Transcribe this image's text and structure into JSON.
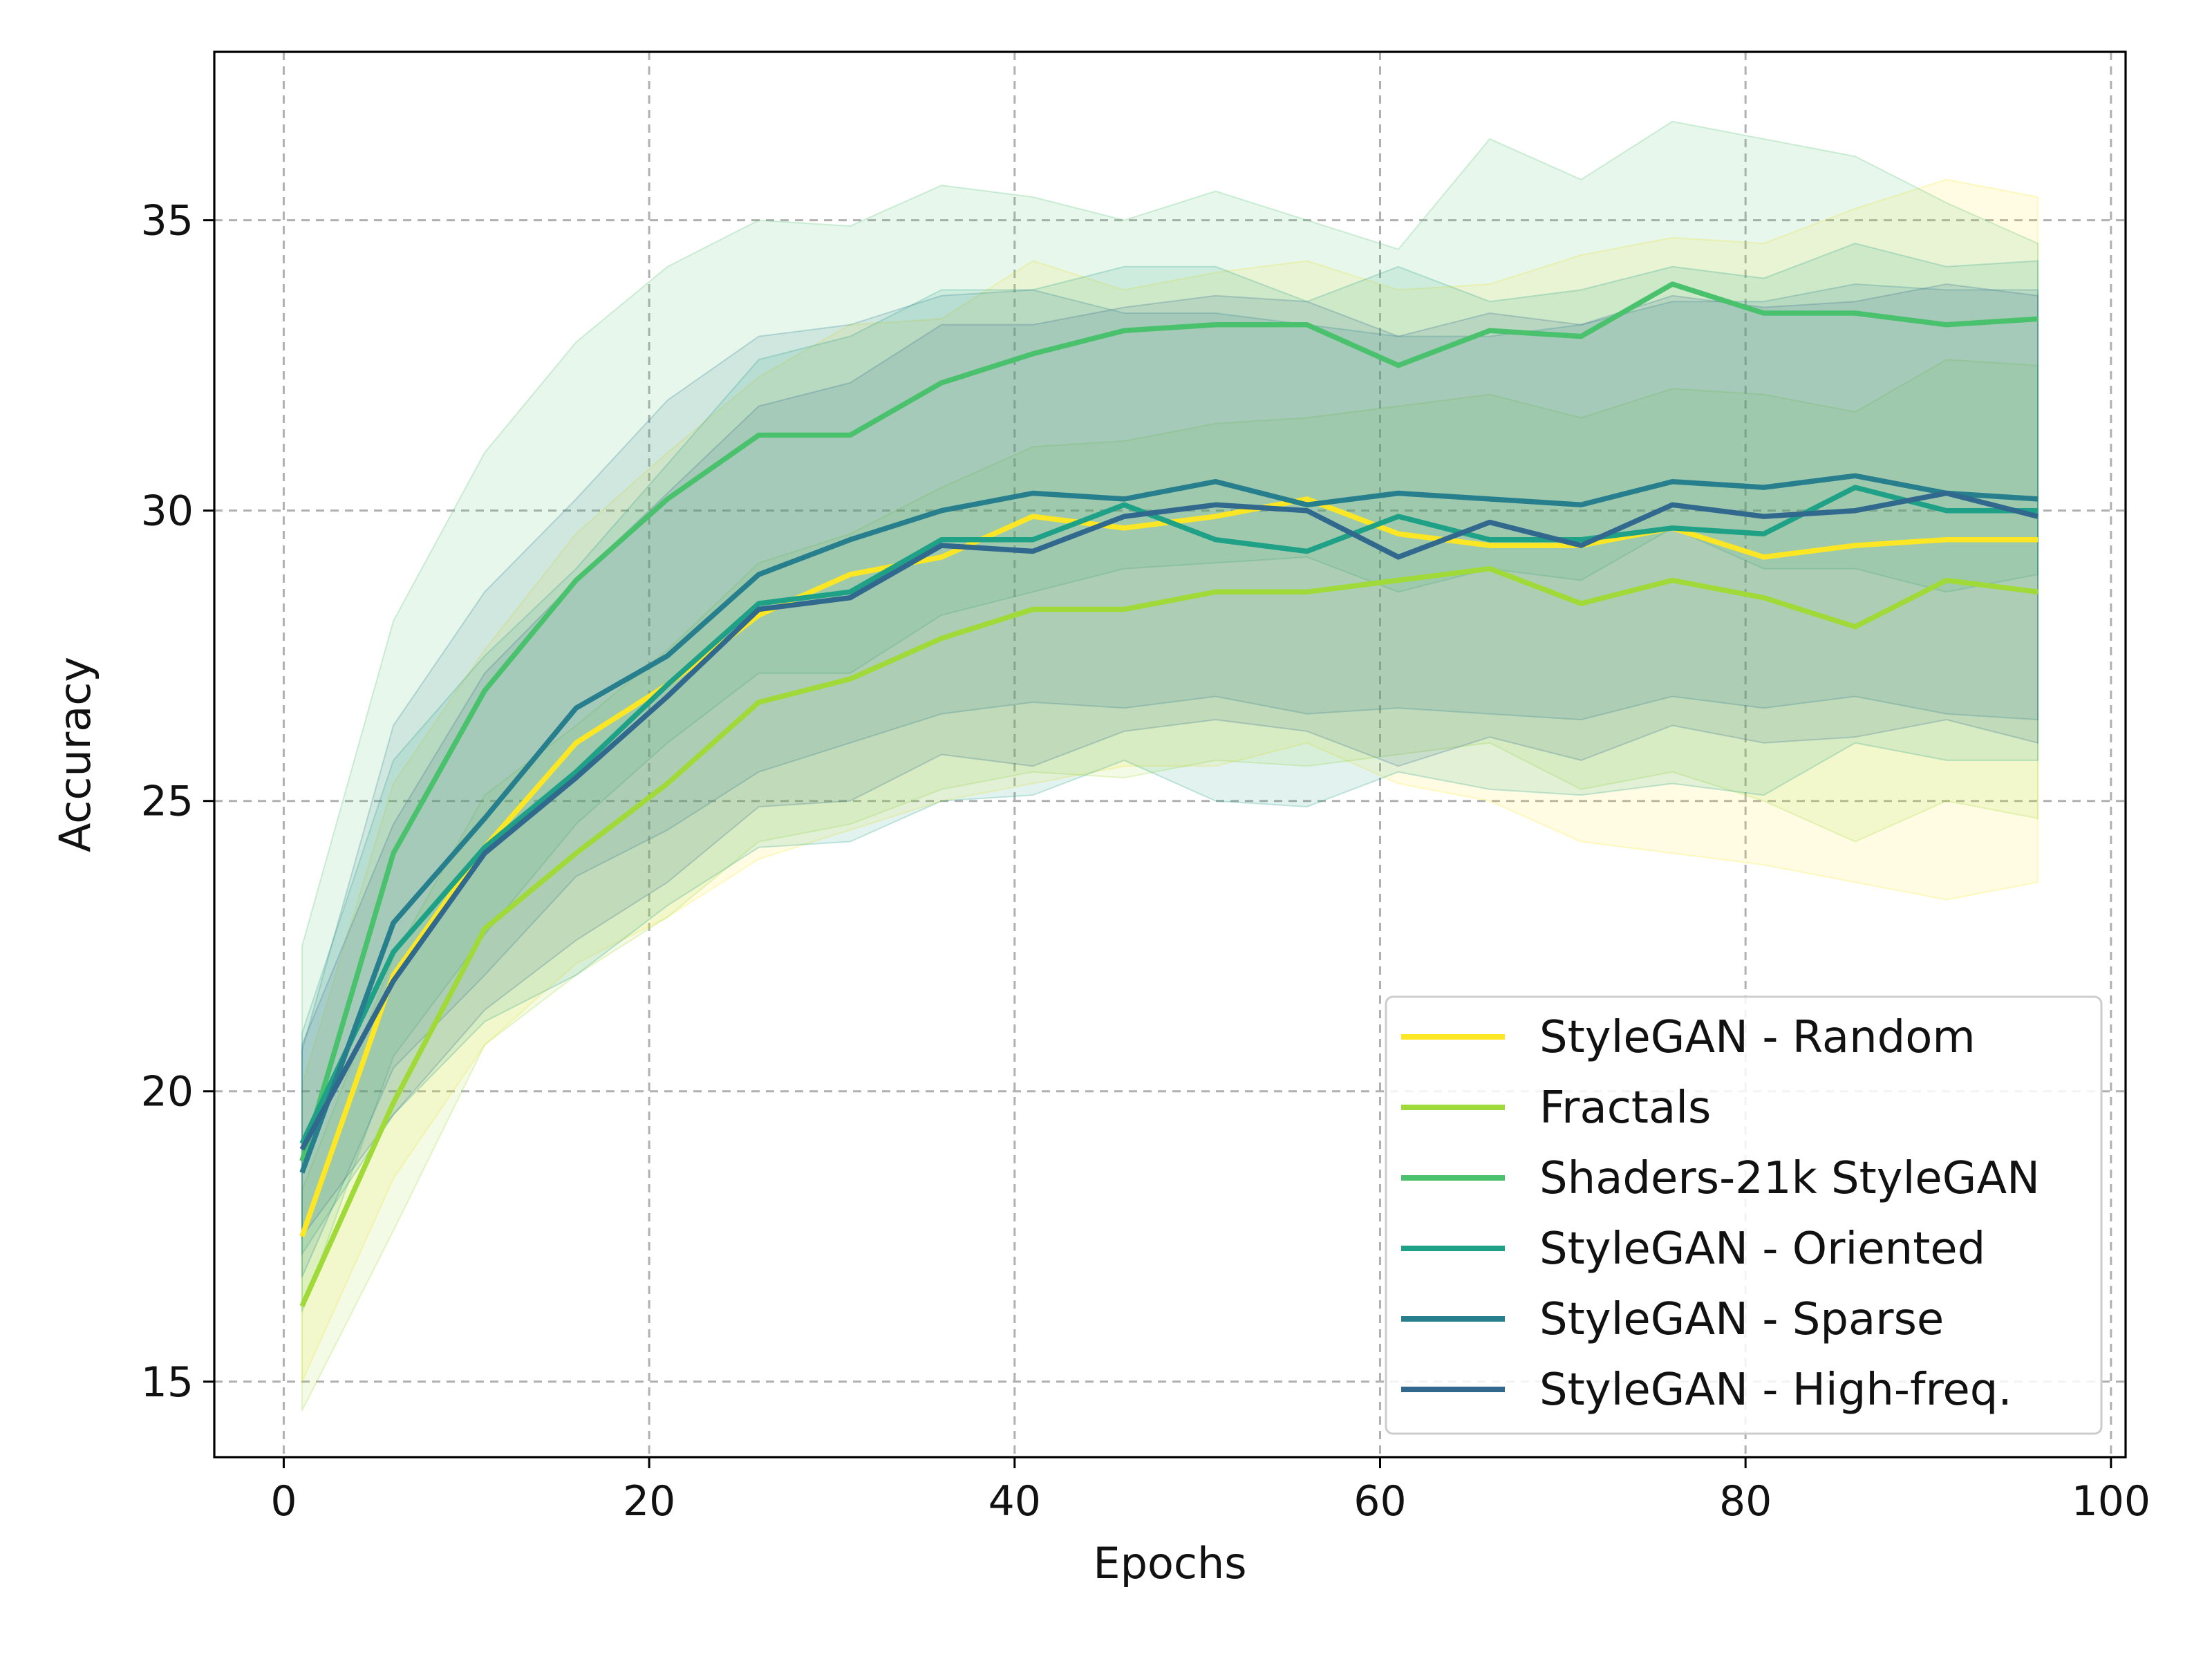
{
  "chart_data": {
    "type": "line",
    "title": "",
    "xlabel": "Epochs",
    "ylabel": "Accuracy",
    "xlim": [
      -3.8,
      100.8
    ],
    "ylim": [
      13.7,
      37.9
    ],
    "xticks": [
      0,
      20,
      40,
      60,
      80,
      100
    ],
    "yticks": [
      15,
      20,
      25,
      30,
      35
    ],
    "grid": true,
    "legend_position": "lower-right",
    "x": [
      1,
      6,
      11,
      16,
      21,
      26,
      31,
      36,
      41,
      46,
      51,
      56,
      61,
      66,
      71,
      76,
      81,
      86,
      91,
      96
    ],
    "series": [
      {
        "name": "StyleGAN - Random",
        "color": "#fde725",
        "values": [
          17.5,
          22.0,
          24.2,
          26.0,
          27.0,
          28.2,
          28.9,
          29.2,
          29.9,
          29.7,
          29.9,
          30.2,
          29.6,
          29.4,
          29.4,
          29.7,
          29.2,
          29.4,
          29.5,
          29.5
        ],
        "band": [
          [
            15.0,
            20.1
          ],
          [
            18.5,
            25.3
          ],
          [
            20.8,
            27.6
          ],
          [
            22.2,
            29.6
          ],
          [
            23.0,
            31.0
          ],
          [
            24.0,
            32.3
          ],
          [
            24.5,
            33.2
          ],
          [
            25.0,
            33.3
          ],
          [
            25.3,
            34.3
          ],
          [
            25.6,
            33.8
          ],
          [
            25.6,
            34.1
          ],
          [
            26.0,
            34.3
          ],
          [
            25.3,
            33.8
          ],
          [
            25.0,
            33.9
          ],
          [
            24.3,
            34.4
          ],
          [
            24.1,
            34.7
          ],
          [
            23.9,
            34.6
          ],
          [
            23.6,
            35.2
          ],
          [
            23.3,
            35.7
          ],
          [
            23.6,
            35.4
          ]
        ]
      },
      {
        "name": "Fractals",
        "color": "#a0da39",
        "values": [
          16.3,
          19.8,
          22.8,
          24.1,
          25.3,
          26.7,
          27.1,
          27.8,
          28.3,
          28.3,
          28.6,
          28.6,
          28.8,
          29.0,
          28.4,
          28.8,
          28.5,
          28.0,
          28.8,
          28.6
        ],
        "band": [
          [
            14.5,
            18.3
          ],
          [
            17.6,
            22.3
          ],
          [
            20.8,
            25.1
          ],
          [
            22.0,
            26.3
          ],
          [
            23.0,
            27.6
          ],
          [
            24.3,
            29.1
          ],
          [
            24.6,
            29.6
          ],
          [
            25.2,
            30.4
          ],
          [
            25.5,
            31.1
          ],
          [
            25.4,
            31.2
          ],
          [
            25.7,
            31.5
          ],
          [
            25.6,
            31.6
          ],
          [
            25.8,
            31.8
          ],
          [
            26.0,
            32.0
          ],
          [
            25.2,
            31.6
          ],
          [
            25.5,
            32.1
          ],
          [
            25.0,
            32.0
          ],
          [
            24.3,
            31.7
          ],
          [
            25.0,
            32.6
          ],
          [
            24.7,
            32.5
          ]
        ]
      },
      {
        "name": "Shaders-21k StyleGAN",
        "color": "#4ac16d",
        "values": [
          18.8,
          24.1,
          26.9,
          28.8,
          30.2,
          31.3,
          31.3,
          32.2,
          32.7,
          33.1,
          33.2,
          33.2,
          32.5,
          33.1,
          33.0,
          33.9,
          33.4,
          33.4,
          33.2,
          33.3
        ],
        "band": [
          [
            16.2,
            22.5
          ],
          [
            20.6,
            28.1
          ],
          [
            22.7,
            31.0
          ],
          [
            24.6,
            32.9
          ],
          [
            26.0,
            34.2
          ],
          [
            27.2,
            35.0
          ],
          [
            27.2,
            34.9
          ],
          [
            28.2,
            35.6
          ],
          [
            28.6,
            35.4
          ],
          [
            29.0,
            35.0
          ],
          [
            29.1,
            35.5
          ],
          [
            29.2,
            35.0
          ],
          [
            28.6,
            34.5
          ],
          [
            29.0,
            36.4
          ],
          [
            28.8,
            35.7
          ],
          [
            29.7,
            36.7
          ],
          [
            29.0,
            36.4
          ],
          [
            29.0,
            36.1
          ],
          [
            28.6,
            35.3
          ],
          [
            28.9,
            34.6
          ]
        ]
      },
      {
        "name": "StyleGAN - Oriented",
        "color": "#1fa187",
        "values": [
          19.1,
          22.4,
          24.2,
          25.5,
          27.0,
          28.4,
          28.6,
          29.5,
          29.5,
          30.1,
          29.5,
          29.3,
          29.9,
          29.5,
          29.5,
          29.7,
          29.6,
          30.4,
          30.0,
          30.0
        ],
        "band": [
          [
            17.2,
            21.0
          ],
          [
            19.6,
            25.7
          ],
          [
            21.2,
            27.5
          ],
          [
            22.0,
            29.0
          ],
          [
            23.2,
            30.8
          ],
          [
            24.2,
            32.6
          ],
          [
            24.3,
            33.0
          ],
          [
            25.0,
            33.8
          ],
          [
            25.1,
            33.8
          ],
          [
            25.7,
            34.2
          ],
          [
            25.0,
            34.2
          ],
          [
            24.9,
            33.6
          ],
          [
            25.5,
            34.2
          ],
          [
            25.2,
            33.6
          ],
          [
            25.1,
            33.8
          ],
          [
            25.3,
            34.2
          ],
          [
            25.1,
            34.0
          ],
          [
            26.0,
            34.6
          ],
          [
            25.7,
            34.2
          ],
          [
            25.7,
            34.3
          ]
        ]
      },
      {
        "name": "StyleGAN - Sparse",
        "color": "#277f8e",
        "values": [
          18.6,
          22.9,
          24.7,
          26.6,
          27.5,
          28.9,
          29.5,
          30.0,
          30.3,
          30.2,
          30.5,
          30.1,
          30.3,
          30.2,
          30.1,
          30.5,
          30.4,
          30.6,
          30.3,
          30.2
        ],
        "band": [
          [
            16.8,
            20.7
          ],
          [
            20.4,
            26.3
          ],
          [
            22.0,
            28.6
          ],
          [
            23.7,
            30.2
          ],
          [
            24.5,
            31.9
          ],
          [
            25.5,
            33.0
          ],
          [
            26.0,
            33.2
          ],
          [
            26.5,
            33.7
          ],
          [
            26.7,
            33.8
          ],
          [
            26.6,
            33.4
          ],
          [
            26.8,
            33.4
          ],
          [
            26.5,
            33.2
          ],
          [
            26.6,
            33.0
          ],
          [
            26.5,
            33.0
          ],
          [
            26.4,
            33.2
          ],
          [
            26.8,
            33.6
          ],
          [
            26.6,
            33.6
          ],
          [
            26.8,
            33.9
          ],
          [
            26.5,
            33.8
          ],
          [
            26.4,
            33.8
          ]
        ]
      },
      {
        "name": "StyleGAN - High-freq.",
        "color": "#31688e",
        "values": [
          19.0,
          21.9,
          24.1,
          25.4,
          26.8,
          28.3,
          28.5,
          29.4,
          29.3,
          29.9,
          30.1,
          30.0,
          29.2,
          29.8,
          29.4,
          30.1,
          29.9,
          30.0,
          30.3,
          29.9
        ],
        "band": [
          [
            17.5,
            20.8
          ],
          [
            19.6,
            24.6
          ],
          [
            21.4,
            27.2
          ],
          [
            22.6,
            28.8
          ],
          [
            23.6,
            30.3
          ],
          [
            24.9,
            31.8
          ],
          [
            25.0,
            32.2
          ],
          [
            25.8,
            33.2
          ],
          [
            25.6,
            33.2
          ],
          [
            26.2,
            33.5
          ],
          [
            26.4,
            33.7
          ],
          [
            26.2,
            33.6
          ],
          [
            25.6,
            33.0
          ],
          [
            26.1,
            33.4
          ],
          [
            25.7,
            33.2
          ],
          [
            26.3,
            33.7
          ],
          [
            26.0,
            33.5
          ],
          [
            26.1,
            33.6
          ],
          [
            26.4,
            33.9
          ],
          [
            26.0,
            33.7
          ]
        ]
      }
    ]
  }
}
